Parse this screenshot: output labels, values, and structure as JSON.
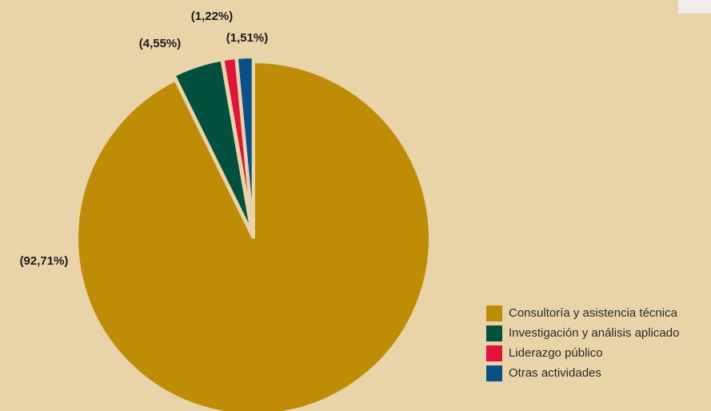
{
  "chart_data": {
    "type": "pie",
    "title": "",
    "series": [
      {
        "name": "Consultoría y asistencia técnica",
        "value": 92.71,
        "label": "(92,71%)",
        "color": "#bf8c08"
      },
      {
        "name": "Investigación y análisis aplicado",
        "value": 4.55,
        "label": "(4,55%)",
        "color": "#02503d"
      },
      {
        "name": "Liderazgo público",
        "value": 1.22,
        "label": "(1,22%)",
        "color": "#e01338"
      },
      {
        "name": "Otras actividades",
        "value": 1.51,
        "label": "(1,51%)",
        "color": "#0c5089"
      }
    ],
    "legend_position": "bottom-right",
    "exploded": true
  },
  "colors": {
    "background": "#e8d4a8",
    "separator": "#e8d4a8"
  }
}
